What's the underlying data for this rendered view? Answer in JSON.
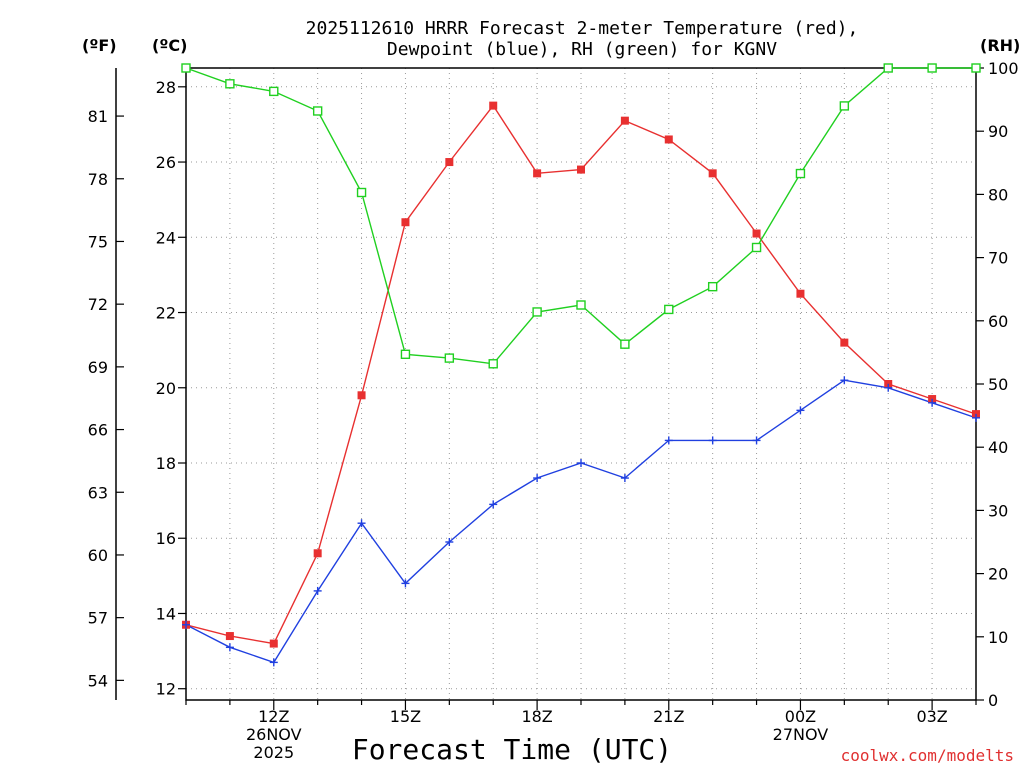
{
  "chart_data": {
    "type": "line",
    "title": [
      "2025112610 HRRR Forecast 2-meter Temperature (red),",
      "Dewpoint (blue), RH (green) for KGNV"
    ],
    "xlabel": "Forecast Time (UTC)",
    "units": {
      "fahrenheit": "(ºF)",
      "celsius": "(ºC)",
      "rh": "(RH)"
    },
    "x": [
      10,
      11,
      12,
      13,
      14,
      15,
      16,
      17,
      18,
      19,
      20,
      21,
      22,
      23,
      24,
      25,
      26,
      27,
      28
    ],
    "xlim": [
      10,
      28
    ],
    "x_ticks": [
      {
        "x": 12,
        "lines": [
          "12Z",
          "26NOV",
          "2025"
        ]
      },
      {
        "x": 15,
        "lines": [
          "15Z"
        ]
      },
      {
        "x": 18,
        "lines": [
          "18Z"
        ]
      },
      {
        "x": 21,
        "lines": [
          "21Z"
        ]
      },
      {
        "x": 24,
        "lines": [
          "00Z",
          "27NOV"
        ]
      },
      {
        "x": 27,
        "lines": [
          "03Z"
        ]
      }
    ],
    "ylim_c": [
      11.7,
      28.5
    ],
    "y_ticks_c": [
      12,
      14,
      16,
      18,
      20,
      22,
      24,
      26,
      28
    ],
    "y_ticks_f": [
      54,
      57,
      60,
      63,
      66,
      69,
      72,
      75,
      78,
      81
    ],
    "ylim_rh": [
      0,
      100
    ],
    "y_ticks_rh": [
      0,
      10,
      20,
      30,
      40,
      50,
      60,
      70,
      80,
      90,
      100
    ],
    "grid": true,
    "series": [
      {
        "name": "Temperature",
        "axis": "c",
        "color": "#e83030",
        "marker": "filled-square",
        "values": [
          13.7,
          13.4,
          13.2,
          15.6,
          19.8,
          24.4,
          26.0,
          27.5,
          25.7,
          25.8,
          27.1,
          26.6,
          25.7,
          24.1,
          22.5,
          21.2,
          20.1,
          19.7,
          19.3
        ]
      },
      {
        "name": "Dewpoint",
        "axis": "c",
        "color": "#2040e0",
        "marker": "plus",
        "values": [
          13.7,
          13.1,
          12.7,
          14.6,
          16.4,
          14.8,
          15.9,
          16.9,
          17.6,
          18.0,
          17.6,
          18.6,
          18.6,
          18.6,
          19.4,
          20.2,
          20.0,
          19.6,
          19.2
        ]
      },
      {
        "name": "RH",
        "axis": "rh",
        "color": "#20d020",
        "marker": "open-square",
        "values": [
          100,
          97.5,
          96.3,
          93.2,
          80.3,
          54.7,
          54.1,
          53.2,
          61.4,
          62.5,
          56.3,
          61.8,
          65.4,
          71.6,
          83.3,
          94.0,
          100,
          100,
          100
        ]
      }
    ],
    "credit": "coolwx.com/modelts"
  }
}
